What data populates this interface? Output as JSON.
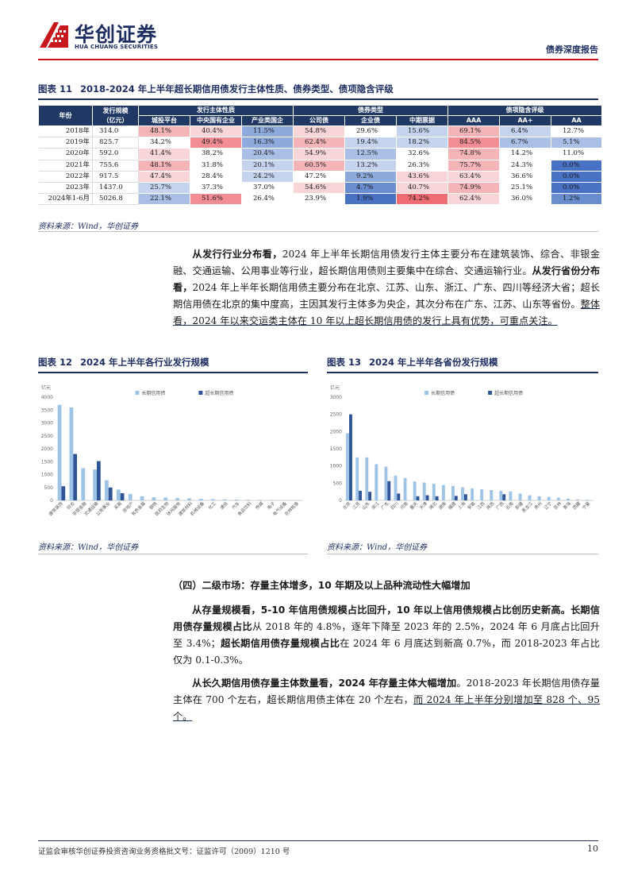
{
  "header": {
    "logo_cn": "华创证券",
    "logo_en": "HUA CHUANG SECURITIES",
    "report_type": "债券深度报告"
  },
  "figure11": {
    "label": "图表 11",
    "title": "2018-2024 年上半年超长期信用债发行主体性质、债券类型、债项隐含评级",
    "col_year": "年份",
    "col_size": "发行规模\n（亿元）",
    "group_issuer": "发行主体性质",
    "group_type": "债券类型",
    "group_rating": "债项隐含评级",
    "sub_issuer": [
      "城投平台",
      "中央国有企业",
      "产业类国企"
    ],
    "sub_type": [
      "公司债",
      "企业债",
      "中期票据"
    ],
    "sub_rating": [
      "AAA",
      "AA+",
      "AA"
    ],
    "rows": [
      {
        "year": "2018年",
        "size": "314.0",
        "cells": [
          {
            "v": "48.1%",
            "c": "#f5b5b8"
          },
          {
            "v": "40.4%",
            "c": "#f8d5d7"
          },
          {
            "v": "11.5%",
            "c": "#8ea9db"
          },
          {
            "v": "54.8%",
            "c": "#f8d5d7"
          },
          {
            "v": "29.6%",
            "c": "#ffffff"
          },
          {
            "v": "15.6%",
            "c": "#c5d3ee"
          },
          {
            "v": "69.1%",
            "c": "#f5b5b8"
          },
          {
            "v": "6.4%",
            "c": "#c5d3ee"
          },
          {
            "v": "12.7%",
            "c": "#ffffff"
          }
        ]
      },
      {
        "year": "2019年",
        "size": "825.7",
        "cells": [
          {
            "v": "34.2%",
            "c": "#ffffff"
          },
          {
            "v": "49.4%",
            "c": "#f28e93"
          },
          {
            "v": "16.3%",
            "c": "#8ea9db"
          },
          {
            "v": "62.4%",
            "c": "#f5b5b8"
          },
          {
            "v": "19.4%",
            "c": "#c5d3ee"
          },
          {
            "v": "18.2%",
            "c": "#c5d3ee"
          },
          {
            "v": "84.5%",
            "c": "#f28e93"
          },
          {
            "v": "6.7%",
            "c": "#a9bfe6"
          },
          {
            "v": "5.1%",
            "c": "#a9bfe6"
          }
        ]
      },
      {
        "year": "2020年",
        "size": "592.0",
        "cells": [
          {
            "v": "41.4%",
            "c": "#f8d5d7"
          },
          {
            "v": "38.2%",
            "c": "#ffffff"
          },
          {
            "v": "20.4%",
            "c": "#a9bfe6"
          },
          {
            "v": "54.9%",
            "c": "#f8d5d7"
          },
          {
            "v": "12.5%",
            "c": "#a9bfe6"
          },
          {
            "v": "32.6%",
            "c": "#ffffff"
          },
          {
            "v": "74.8%",
            "c": "#f5b5b8"
          },
          {
            "v": "14.2%",
            "c": "#ffffff"
          },
          {
            "v": "11.0%",
            "c": "#ffffff"
          }
        ]
      },
      {
        "year": "2021年",
        "size": "755.6",
        "cells": [
          {
            "v": "48.1%",
            "c": "#f5b5b8"
          },
          {
            "v": "31.8%",
            "c": "#ffffff"
          },
          {
            "v": "20.1%",
            "c": "#c5d3ee"
          },
          {
            "v": "60.5%",
            "c": "#f5b5b8"
          },
          {
            "v": "13.2%",
            "c": "#c5d3ee"
          },
          {
            "v": "26.3%",
            "c": "#ffffff"
          },
          {
            "v": "75.7%",
            "c": "#f5b5b8"
          },
          {
            "v": "24.3%",
            "c": "#ffffff"
          },
          {
            "v": "0.0%",
            "c": "#4a72c4"
          }
        ]
      },
      {
        "year": "2022年",
        "size": "917.5",
        "cells": [
          {
            "v": "47.4%",
            "c": "#f8d5d7"
          },
          {
            "v": "28.4%",
            "c": "#ffffff"
          },
          {
            "v": "24.2%",
            "c": "#c5d3ee"
          },
          {
            "v": "47.2%",
            "c": "#ffffff"
          },
          {
            "v": "9.2%",
            "c": "#8ea9db"
          },
          {
            "v": "43.6%",
            "c": "#f8d5d7"
          },
          {
            "v": "63.4%",
            "c": "#f8d5d7"
          },
          {
            "v": "36.6%",
            "c": "#ffffff"
          },
          {
            "v": "0.0%",
            "c": "#4a72c4"
          }
        ]
      },
      {
        "year": "2023年",
        "size": "1437.0",
        "cells": [
          {
            "v": "25.7%",
            "c": "#c5d3ee"
          },
          {
            "v": "37.3%",
            "c": "#ffffff"
          },
          {
            "v": "37.0%",
            "c": "#ffffff"
          },
          {
            "v": "54.6%",
            "c": "#f8d5d7"
          },
          {
            "v": "4.7%",
            "c": "#6a8dd0"
          },
          {
            "v": "40.7%",
            "c": "#f8d5d7"
          },
          {
            "v": "74.9%",
            "c": "#f5b5b8"
          },
          {
            "v": "25.1%",
            "c": "#ffffff"
          },
          {
            "v": "0.0%",
            "c": "#4a72c4"
          }
        ]
      },
      {
        "year": "2024年1-6月",
        "size": "5026.8",
        "cells": [
          {
            "v": "22.1%",
            "c": "#a9bfe6"
          },
          {
            "v": "51.6%",
            "c": "#f28e93"
          },
          {
            "v": "26.4%",
            "c": "#ffffff"
          },
          {
            "v": "23.9%",
            "c": "#ffffff"
          },
          {
            "v": "1.9%",
            "c": "#4a72c4"
          },
          {
            "v": "74.2%",
            "c": "#f06d73"
          },
          {
            "v": "62.4%",
            "c": "#f8d5d7"
          },
          {
            "v": "36.0%",
            "c": "#ffffff"
          },
          {
            "v": "1.2%",
            "c": "#6a8dd0"
          }
        ]
      }
    ],
    "source": "资料来源：Wind，华创证券"
  },
  "para1": {
    "b1": "从发行行业分布看，",
    "t1": "2024 年上半年长期信用债发行主体主要分布在建筑装饰、综合、非银金融、交通运输、公用事业等行业，超长期信用债则主要集中在综合、交通运输行业。",
    "b2": "从发行省份分布看，",
    "t2": "2024 年上半年长期信用债主要分布在北京、江苏、山东、浙江、广东、四川等经济大省；超长期信用债在北京的集中度高，主因其发行主体多为央企，其次分布在广东、江苏、山东等省份。",
    "u1": "整体看，2024 年以来交运类主体在 10 年以上超长期信用债的发行上具有优势，可重点关注。"
  },
  "figure12": {
    "label": "图表 12",
    "title": "2024 年上半年各行业发行规模",
    "source": "资料来源：Wind，华创证券"
  },
  "figure13": {
    "label": "图表 13",
    "title": "2024 年上半年各省份发行规模",
    "source": "资料来源：Wind，华创证券"
  },
  "chart_data": [
    {
      "type": "bar",
      "ylabel": "亿元",
      "ylim": [
        0,
        4000
      ],
      "yticks": [
        0,
        500,
        1000,
        1500,
        2000,
        2500,
        3000,
        3500,
        4000
      ],
      "legend_position": "top",
      "categories": [
        "建筑装饰",
        "综合",
        "非银金融",
        "交通运输",
        "公用事业",
        "采掘",
        "房地产",
        "有色金属",
        "钢铁",
        "医药生物",
        "休闲服务",
        "建筑材料",
        "机械设备",
        "化工",
        "通信",
        "汽车",
        "食品饮料",
        "传媒",
        "电子",
        "电气设备",
        "农林牧渔"
      ],
      "series": [
        {
          "name": "长期信用债",
          "color": "#9dc3e6",
          "values": [
            3700,
            3600,
            1250,
            1200,
            780,
            420,
            250,
            160,
            120,
            110,
            90,
            80,
            60,
            50,
            40,
            30,
            25,
            20,
            15,
            10,
            8
          ]
        },
        {
          "name": "超长期信用债",
          "color": "#2f5597",
          "values": [
            550,
            1800,
            0,
            1520,
            500,
            280,
            0,
            0,
            0,
            0,
            0,
            0,
            0,
            0,
            0,
            0,
            0,
            0,
            0,
            0,
            0
          ]
        }
      ]
    },
    {
      "type": "bar",
      "ylabel": "亿元",
      "ylim": [
        0,
        3000
      ],
      "yticks": [
        0,
        500,
        1000,
        1500,
        2000,
        2500,
        3000
      ],
      "legend_position": "top",
      "categories": [
        "北京",
        "江苏",
        "山东",
        "浙江",
        "广东",
        "四川",
        "河南",
        "重庆",
        "天津",
        "湖北",
        "湖南",
        "福建",
        "上海",
        "安徽",
        "江西",
        "陕西",
        "广西",
        "云南",
        "新疆",
        "黑龙江",
        "贵州",
        "辽宁",
        "吉林",
        "青海",
        "西藏",
        "宁夏"
      ],
      "series": [
        {
          "name": "长期信用债",
          "color": "#9dc3e6",
          "values": [
            1950,
            1250,
            1250,
            1050,
            980,
            720,
            650,
            550,
            520,
            480,
            450,
            420,
            380,
            350,
            320,
            300,
            280,
            260,
            200,
            150,
            120,
            100,
            80,
            50,
            30,
            20
          ]
        },
        {
          "name": "超长期信用债",
          "color": "#2f5597",
          "values": [
            2500,
            280,
            250,
            0,
            560,
            200,
            0,
            120,
            150,
            120,
            0,
            130,
            180,
            0,
            0,
            0,
            180,
            0,
            0,
            0,
            0,
            0,
            0,
            0,
            0,
            0
          ]
        }
      ]
    }
  ],
  "section4": {
    "heading": "（四）二级市场：存量主体增多，10 年期及以上品种流动性大幅增加"
  },
  "para2": {
    "b1": "从存量规模看，5-10 年信用债规模占比回升，10 年以上信用债规模占比创历史新高。长期信用债存量规模占比",
    "t1": "从 2018 年的 4.8%，逐年下降至 2023 年的 2.5%，2024 年 6 月底占比回升至 3.4%；",
    "b2": "超长期信用债存量规模占比",
    "t2": "在 2024 年 6 月底达到新高 0.7%，而 2018-2023 年占比仅为 0.1-0.3%。"
  },
  "para3": {
    "b1": "从长久期信用债存量主体数量看，2024 年存量主体大幅增加",
    "t1": "。2018-2023 年长期信用债存量主体在 700 个左右，超长期信用债主体在 20 个左右，",
    "u1": "而 2024 年上半年分别增加至 828 个、95 个。"
  },
  "footer": {
    "text": "证监会审核华创证券投资咨询业务资格批文号：证监许可（2009）1210 号",
    "page": "10"
  }
}
